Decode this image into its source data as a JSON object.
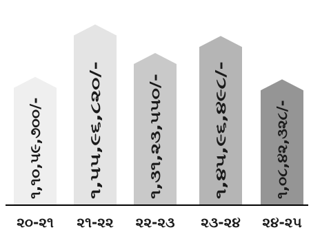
{
  "chart_data": {
    "type": "bar",
    "categories": [
      "૨૦-૨૧",
      "૨૧-૨૨",
      "૨૨-૨૩",
      "૨૩-૨૪",
      "૨૪-૨૫"
    ],
    "values": [
      11059700,
      15596820,
      13123550,
      14596498,
      10842328
    ],
    "data_labels": [
      "૧,૧૦,૫૯,૭૦૦/-",
      "૧,૫૫,૯૬,૮૨૦/-",
      "૧,૩૧,૨૩,૫૫૦/-",
      "૧,૪૫,૯૬,૪૯૮/-",
      "૧,૦૮,૪૨,૩૨૮/-"
    ],
    "bar_colors": [
      "#efefef",
      "#e4e4e4",
      "#c9c9c9",
      "#b5b5b5",
      "#959595"
    ],
    "title": "",
    "xlabel": "",
    "ylabel": "",
    "ylim": [
      0,
      17000000
    ],
    "grid": false,
    "legend": "none"
  }
}
